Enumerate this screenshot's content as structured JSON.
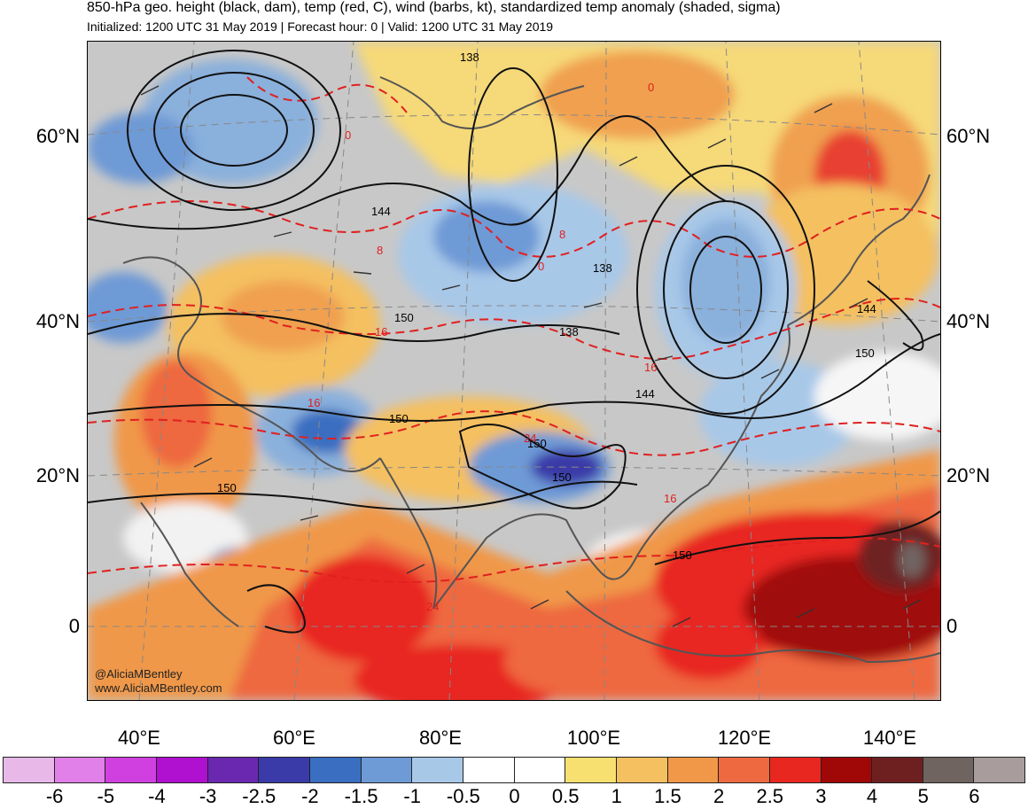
{
  "title": "850-hPa geo. height (black, dam), temp (red, C), wind (barbs, kt), standardized temp anomaly (shaded, sigma)",
  "subtitle": "Initialized: 1200 UTC 31 May 2019 | Forecast hour: 0 | Valid: 1200 UTC 31 May 2019",
  "watermark": {
    "line1": "@AliciaMBentley",
    "line2": "www.AliciaMBentley.com"
  },
  "latitude_labels": [
    "60°N",
    "40°N",
    "20°N",
    "0"
  ],
  "longitude_labels": [
    "40°E",
    "60°E",
    "80°E",
    "100°E",
    "120°E",
    "140°E"
  ],
  "height_contour_labels": [
    "138",
    "144",
    "138",
    "150",
    "138",
    "144",
    "150",
    "144",
    "150",
    "150",
    "150",
    "150",
    "150"
  ],
  "temp_contour_labels": [
    "0",
    "8",
    "0",
    "8",
    "0",
    "16",
    "16",
    "16",
    "24",
    "24",
    "16"
  ],
  "colorbar": {
    "labels": [
      "-6",
      "-5",
      "-4",
      "-3",
      "-2.5",
      "-2",
      "-1.5",
      "-1",
      "-0.5",
      "0",
      "0.5",
      "1",
      "1.5",
      "2",
      "2.5",
      "3",
      "4",
      "5",
      "6"
    ],
    "colors": [
      "#e8b8e8",
      "#e080e8",
      "#d040e0",
      "#b010d0",
      "#6a28b0",
      "#3a3aa8",
      "#3a6ec0",
      "#6e9ad6",
      "#a8c8e8",
      "#ffffff",
      "#ffffff",
      "#f8e070",
      "#f4c060",
      "#f09848",
      "#ee6840",
      "#e82820",
      "#a00808",
      "#6e2020",
      "#706460",
      "#a89c9c"
    ]
  }
}
